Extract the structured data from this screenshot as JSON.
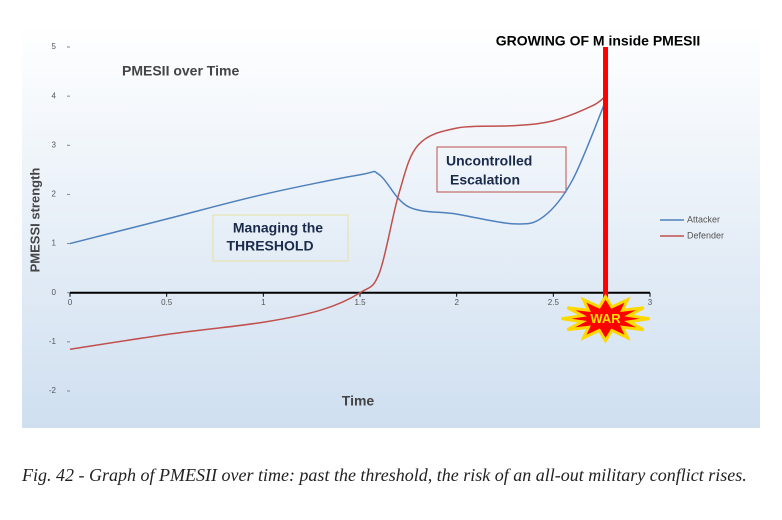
{
  "chart_data": {
    "type": "line",
    "title": "PMESII over Time",
    "heading": "GROWING OF M inside PMESII",
    "x_label": "Time",
    "y_label": "PMESSI strength",
    "xlim": [
      0,
      3
    ],
    "xticks": [
      0,
      0.5,
      1,
      1.5,
      2,
      2.5,
      3
    ],
    "ylim": [
      -2,
      5
    ],
    "yticks": [
      -2,
      -1,
      0,
      1,
      2,
      3,
      4,
      5
    ],
    "legend": "right",
    "series": [
      {
        "name": "Attacker",
        "color": "#4f81bd",
        "x": [
          0,
          0.5,
          1,
          1.5,
          1.6,
          1.75,
          2,
          2.3,
          2.45,
          2.6,
          2.77
        ],
        "values": [
          1,
          1.5,
          2.0,
          2.4,
          2.4,
          1.75,
          1.6,
          1.4,
          1.55,
          2.3,
          3.9
        ]
      },
      {
        "name": "Defender",
        "color": "#c0504d",
        "x": [
          0,
          0.5,
          1,
          1.3,
          1.5,
          1.6,
          1.7,
          1.8,
          2,
          2.3,
          2.5,
          2.7,
          2.77
        ],
        "values": [
          -1.15,
          -0.85,
          -0.6,
          -0.35,
          0,
          0.4,
          2.0,
          3.0,
          3.35,
          3.4,
          3.5,
          3.8,
          4.0
        ]
      }
    ],
    "war_line": {
      "x": 2.77,
      "label": "WAR",
      "color": "#ff0000"
    },
    "threshold_box": [
      "Managing the",
      "THRESHOLD"
    ],
    "escalation_box": [
      "Uncontrolled",
      "Escalation"
    ]
  },
  "caption": "Fig. 42 - Graph of PMESII over time: past the threshold, the risk of an all-out military conflict rises."
}
